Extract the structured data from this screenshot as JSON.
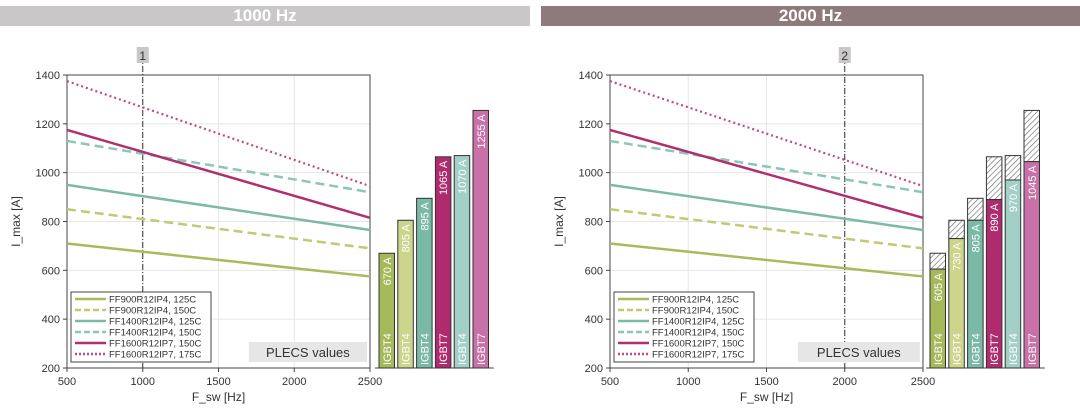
{
  "headers": [
    "1000 Hz",
    "2000 Hz"
  ],
  "header_colors": [
    "#c9c7c7",
    "#8e7a7b"
  ],
  "chart_data": [
    {
      "type": "line+bar",
      "marker_label": "1",
      "marker_x": 1000,
      "xlabel": "F_sw [Hz]",
      "ylabel": "I_max [A]",
      "xlim": [
        500,
        2500
      ],
      "ylim": [
        200,
        1400
      ],
      "xticks": [
        500,
        1000,
        1500,
        2000,
        2500
      ],
      "yticks": [
        200,
        400,
        600,
        800,
        1000,
        1200,
        1400
      ],
      "grid": true,
      "series": [
        {
          "name": "FF900R12IP4, 125C",
          "x": [
            500,
            2500
          ],
          "y": [
            710,
            575
          ],
          "color": "#a9b95c",
          "style": "solid"
        },
        {
          "name": "FF900R12IP4, 150C",
          "x": [
            500,
            2500
          ],
          "y": [
            850,
            690
          ],
          "color": "#c3c874",
          "style": "dashed"
        },
        {
          "name": "FF1400R12IP4, 125C",
          "x": [
            500,
            2500
          ],
          "y": [
            950,
            765
          ],
          "color": "#7db9a8",
          "style": "solid"
        },
        {
          "name": "FF1400R12IP4, 150C",
          "x": [
            500,
            2500
          ],
          "y": [
            1130,
            920
          ],
          "color": "#8cc6b8",
          "style": "dashed"
        },
        {
          "name": "FF1600R12IP7, 150C",
          "x": [
            500,
            2500
          ],
          "y": [
            1175,
            815
          ],
          "color": "#b0306e",
          "style": "solid"
        },
        {
          "name": "FF1600R12IP7, 175C",
          "x": [
            500,
            2500
          ],
          "y": [
            1375,
            945
          ],
          "color": "#c04a86",
          "style": "dotted"
        }
      ],
      "legend": "bottom-left",
      "annotation": "PLECS values",
      "bars": [
        {
          "type": "IGBT4",
          "value": 670,
          "label": "670 A",
          "color": "#a6b95a"
        },
        {
          "type": "IGBT4",
          "value": 805,
          "label": "805 A",
          "color": "#cdd48c"
        },
        {
          "type": "IGBT4",
          "value": 895,
          "label": "895 A",
          "color": "#7ab9a5"
        },
        {
          "type": "IGBT7",
          "value": 1065,
          "label": "1065 A",
          "color": "#b02a6e"
        },
        {
          "type": "IGBT4",
          "value": 1070,
          "label": "1070 A",
          "color": "#a3d0c6"
        },
        {
          "type": "IGBT7",
          "value": 1255,
          "label": "1255 A",
          "color": "#c870a8"
        }
      ]
    },
    {
      "type": "line+bar",
      "marker_label": "2",
      "marker_x": 2000,
      "xlabel": "F_sw [Hz]",
      "ylabel": "I_max [A]",
      "xlim": [
        500,
        2500
      ],
      "ylim": [
        200,
        1400
      ],
      "xticks": [
        500,
        1000,
        1500,
        2000,
        2500
      ],
      "yticks": [
        200,
        400,
        600,
        800,
        1000,
        1200,
        1400
      ],
      "grid": true,
      "series": [
        {
          "name": "FF900R12IP4, 125C",
          "x": [
            500,
            2500
          ],
          "y": [
            710,
            575
          ],
          "color": "#a9b95c",
          "style": "solid"
        },
        {
          "name": "FF900R12IP4, 150C",
          "x": [
            500,
            2500
          ],
          "y": [
            850,
            690
          ],
          "color": "#c3c874",
          "style": "dashed"
        },
        {
          "name": "FF1400R12IP4, 125C",
          "x": [
            500,
            2500
          ],
          "y": [
            950,
            765
          ],
          "color": "#7db9a8",
          "style": "solid"
        },
        {
          "name": "FF1400R12IP4, 150C",
          "x": [
            500,
            2500
          ],
          "y": [
            1130,
            920
          ],
          "color": "#8cc6b8",
          "style": "dashed"
        },
        {
          "name": "FF1600R12IP7, 150C",
          "x": [
            500,
            2500
          ],
          "y": [
            1175,
            815
          ],
          "color": "#b0306e",
          "style": "solid"
        },
        {
          "name": "FF1600R12IP7, 175C",
          "x": [
            500,
            2500
          ],
          "y": [
            1375,
            945
          ],
          "color": "#c04a86",
          "style": "dotted"
        }
      ],
      "legend": "bottom-left",
      "annotation": "PLECS values",
      "bars": [
        {
          "type": "IGBT4",
          "value": 605,
          "hatched_to": 670,
          "label": "605 A",
          "color": "#a6b95a"
        },
        {
          "type": "IGBT4",
          "value": 730,
          "hatched_to": 805,
          "label": "730 A",
          "color": "#cdd48c"
        },
        {
          "type": "IGBT4",
          "value": 805,
          "hatched_to": 895,
          "label": "805 A",
          "color": "#7ab9a5"
        },
        {
          "type": "IGBT7",
          "value": 890,
          "hatched_to": 1065,
          "label": "890 A",
          "color": "#b02a6e"
        },
        {
          "type": "IGBT4",
          "value": 970,
          "hatched_to": 1070,
          "label": "970 A",
          "color": "#a3d0c6"
        },
        {
          "type": "IGBT7",
          "value": 1045,
          "hatched_to": 1255,
          "label": "1045 A",
          "color": "#c870a8"
        }
      ]
    }
  ]
}
